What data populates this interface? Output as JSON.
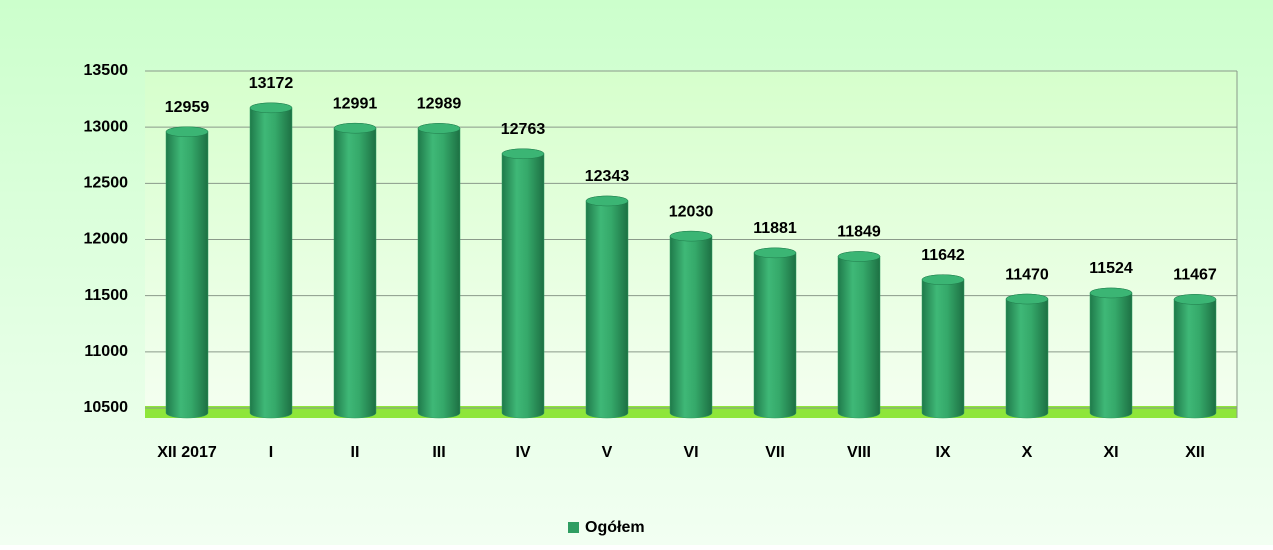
{
  "chart_data": {
    "type": "bar",
    "categories": [
      "XII 2017",
      "I",
      "II",
      "III",
      "IV",
      "V",
      "VI",
      "VII",
      "VIII",
      "IX",
      "X",
      "XI",
      "XII"
    ],
    "series": [
      {
        "name": "Ogółem",
        "color": "#2f9e62",
        "values": [
          12959,
          13172,
          12991,
          12989,
          12763,
          12343,
          12030,
          11881,
          11849,
          11642,
          11470,
          11524,
          11467
        ]
      }
    ],
    "ylim": [
      10500,
      13500
    ],
    "yticks": [
      10500,
      11000,
      11500,
      12000,
      12500,
      13000,
      13500
    ],
    "grid": true
  }
}
